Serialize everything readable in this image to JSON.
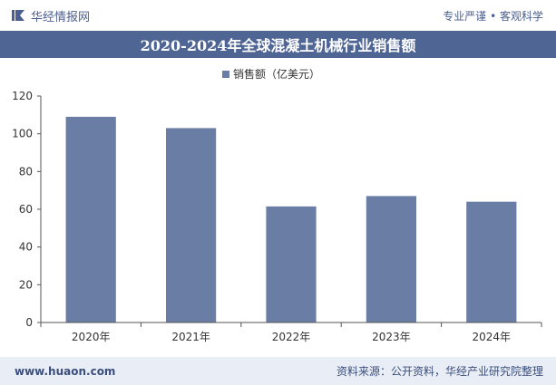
{
  "header": {
    "brand_name": "华经情报网",
    "slogan": "专业严谨 • 客观科学"
  },
  "footer": {
    "website": "www.huaon.com",
    "source": "资料来源：公开资料，华经产业研究院整理"
  },
  "colors": {
    "bar": "#6a7da5",
    "accent": "#4f6594"
  },
  "chart_data": {
    "type": "bar",
    "title": "2020-2024年全球混凝土机械行业销售额",
    "categories": [
      "2020年",
      "2021年",
      "2022年",
      "2023年",
      "2024年"
    ],
    "series": [
      {
        "name": "销售额（亿美元）",
        "values": [
          109,
          103,
          61.5,
          67,
          64
        ]
      }
    ],
    "ylim": [
      0,
      120
    ],
    "yticks": [
      0,
      20,
      40,
      60,
      80,
      100,
      120
    ],
    "xlabel": "",
    "ylabel": "",
    "legend": "top-center",
    "grid": false
  }
}
